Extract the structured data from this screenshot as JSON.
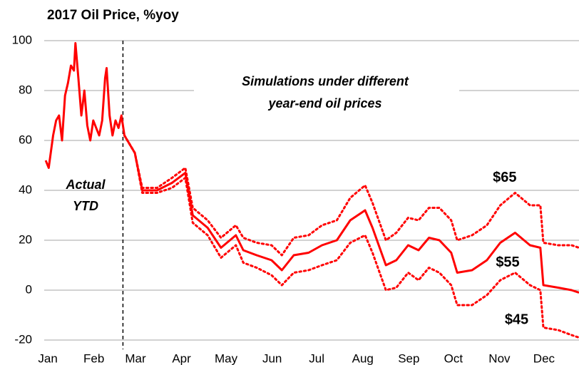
{
  "chart_data": {
    "type": "line",
    "title": "2017 Oil Price, %yoy",
    "xlim": [
      0,
      360
    ],
    "xticks": [
      {
        "value": 1,
        "label": "Jan"
      },
      {
        "value": 32,
        "label": "Feb"
      },
      {
        "value": 60,
        "label": "Mar"
      },
      {
        "value": 91,
        "label": "Apr"
      },
      {
        "value": 121,
        "label": "May"
      },
      {
        "value": 152,
        "label": "Jun"
      },
      {
        "value": 182,
        "label": "Jul"
      },
      {
        "value": 213,
        "label": "Aug"
      },
      {
        "value": 244,
        "label": "Sep"
      },
      {
        "value": 274,
        "label": "Oct"
      },
      {
        "value": 305,
        "label": "Nov"
      },
      {
        "value": 335,
        "label": "Dec"
      }
    ],
    "ylim": [
      -20,
      100
    ],
    "yticks": [
      -20,
      0,
      20,
      40,
      60,
      80,
      100
    ],
    "grid": true,
    "vline_x": 53,
    "annotations": [
      "Actual",
      "YTD",
      "Simulations under different",
      "year-end oil prices"
    ],
    "series": [
      {
        "color": "#ff0000",
        "dotted": false,
        "x": [
          1,
          3,
          6,
          8,
          10,
          12,
          14,
          16,
          18,
          20,
          21,
          23,
          25,
          27,
          29,
          31,
          33,
          35,
          37,
          39,
          41,
          42,
          44,
          46,
          48,
          50,
          52,
          54
        ],
        "values": [
          52,
          49,
          62,
          68,
          70,
          60,
          78,
          83,
          90,
          88,
          99,
          85,
          70,
          80,
          66,
          60,
          68,
          65,
          62,
          68,
          85,
          89,
          70,
          62,
          68,
          65,
          70,
          62
        ]
      },
      {
        "name": "$65",
        "color": "#ff0000",
        "dotted": true,
        "x": [
          54,
          61,
          66,
          76,
          86,
          95,
          100,
          110,
          119,
          129,
          134,
          143,
          153,
          160,
          168,
          178,
          187,
          197,
          206,
          216,
          221,
          230,
          237,
          245,
          252,
          259,
          266,
          274,
          278,
          288,
          298,
          307,
          317,
          327,
          334,
          336,
          346,
          355,
          360
        ],
        "values": [
          62,
          55,
          41,
          41,
          45,
          49,
          33,
          28,
          21,
          26,
          21,
          19,
          18,
          14,
          21,
          22,
          26,
          28,
          37,
          42,
          35,
          20,
          23,
          29,
          28,
          33,
          33,
          28,
          20,
          22,
          26,
          34,
          39,
          34,
          34,
          19,
          18,
          18,
          17
        ]
      },
      {
        "name": "$55",
        "color": "#ff0000",
        "dotted": false,
        "x": [
          54,
          61,
          66,
          76,
          86,
          95,
          100,
          110,
          119,
          129,
          134,
          143,
          153,
          160,
          168,
          178,
          187,
          197,
          206,
          216,
          221,
          230,
          237,
          245,
          252,
          259,
          266,
          274,
          278,
          288,
          298,
          307,
          317,
          327,
          334,
          336,
          346,
          355,
          360
        ],
        "values": [
          62,
          55,
          40,
          40,
          43,
          47,
          30,
          25,
          17,
          22,
          16,
          14,
          12,
          8,
          14,
          15,
          18,
          20,
          28,
          32,
          25,
          10,
          12,
          18,
          16,
          21,
          20,
          15,
          7,
          8,
          12,
          19,
          23,
          18,
          17,
          2,
          1,
          0,
          -1
        ]
      },
      {
        "name": "$45",
        "color": "#ff0000",
        "dotted": true,
        "x": [
          54,
          61,
          66,
          76,
          86,
          95,
          100,
          110,
          119,
          129,
          134,
          143,
          153,
          160,
          168,
          178,
          187,
          197,
          206,
          216,
          221,
          230,
          237,
          245,
          252,
          259,
          266,
          274,
          278,
          288,
          298,
          307,
          317,
          327,
          334,
          336,
          346,
          355,
          360
        ],
        "values": [
          62,
          55,
          39,
          39,
          41,
          45,
          27,
          22,
          13,
          18,
          11,
          9,
          6,
          2,
          7,
          8,
          10,
          12,
          19,
          22,
          15,
          0,
          1,
          7,
          4,
          9,
          7,
          2,
          -6,
          -6,
          -2,
          4,
          7,
          2,
          0,
          -15,
          -16,
          -18,
          -19
        ]
      }
    ]
  }
}
